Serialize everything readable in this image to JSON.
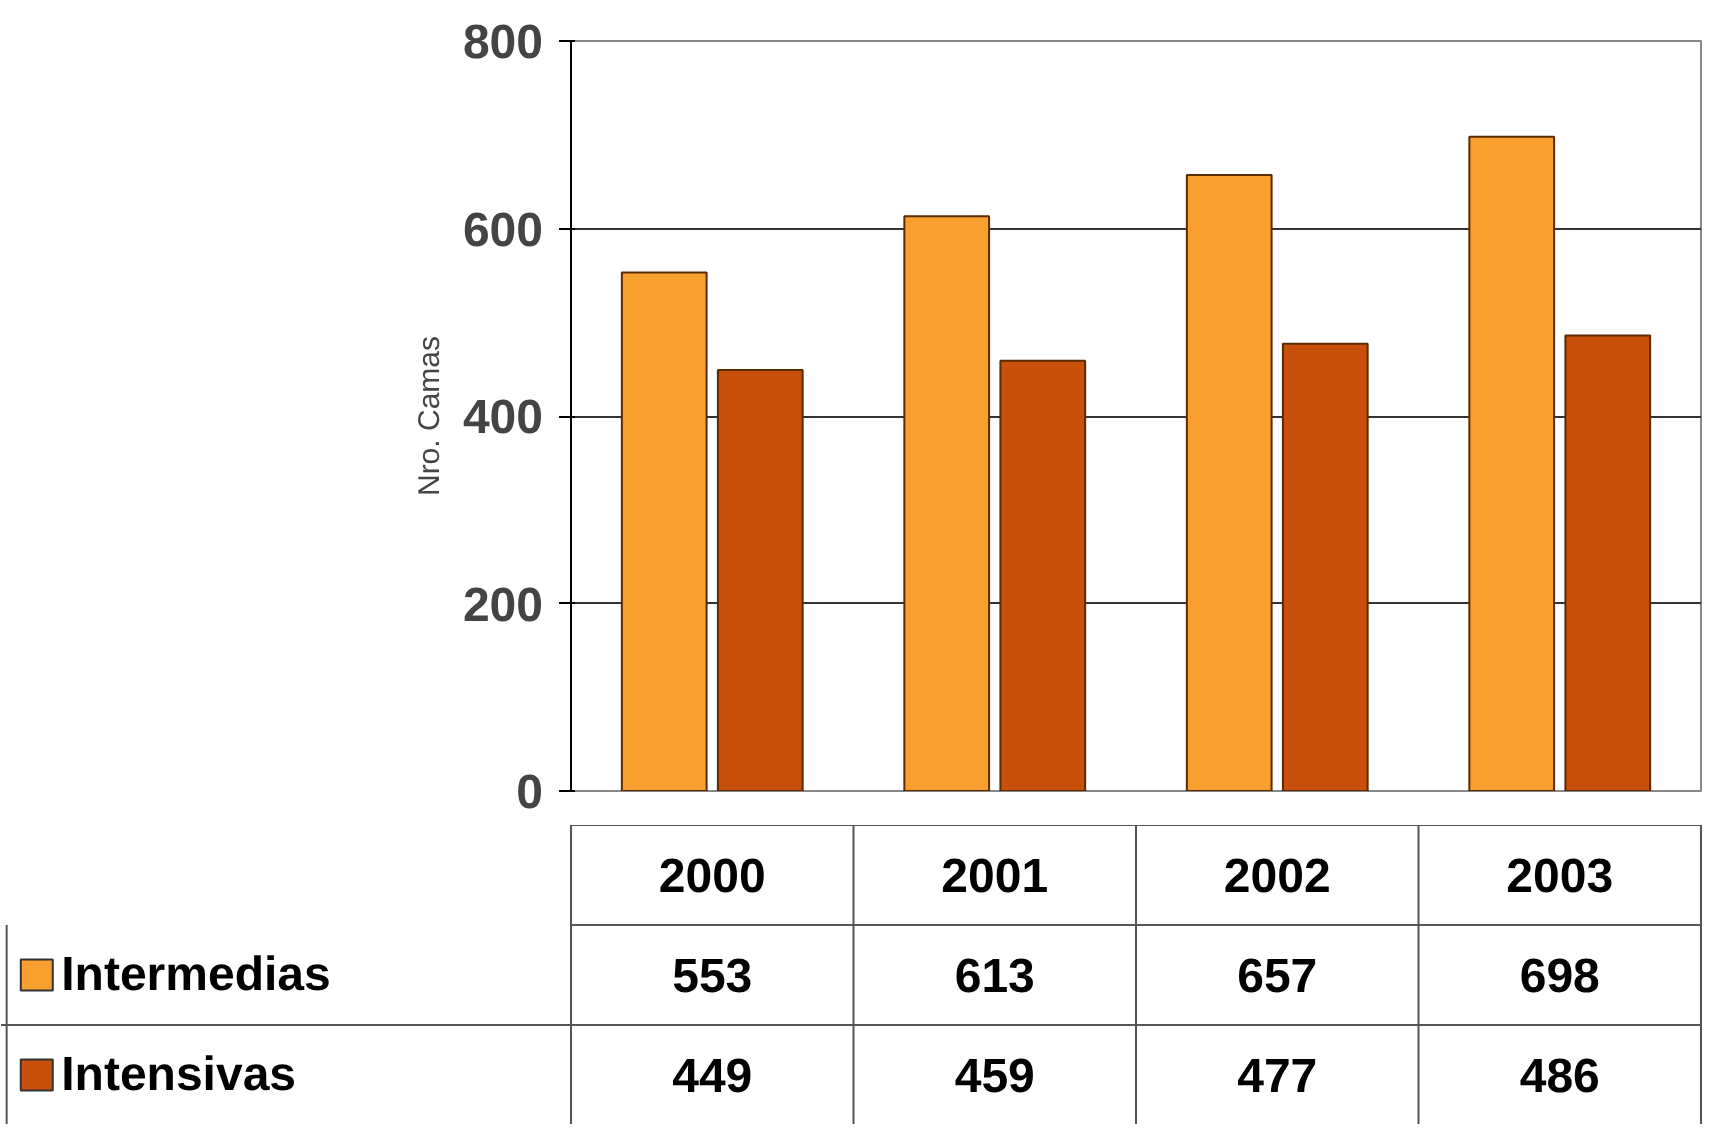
{
  "chart_data": {
    "type": "bar",
    "ylabel": "Nro. Camas",
    "categories": [
      "2000",
      "2001",
      "2002",
      "2003"
    ],
    "series": [
      {
        "name": "Intermedias",
        "color": "#f7a030",
        "values": [
          553,
          613,
          657,
          698
        ]
      },
      {
        "name": "Intensivas",
        "color": "#c8500a",
        "values": [
          449,
          459,
          477,
          486
        ]
      }
    ],
    "ylim": [
      0,
      800
    ],
    "yticks": [
      0,
      200,
      400,
      600,
      800
    ],
    "grid": "y",
    "legend": "bottom",
    "data_labels": true
  }
}
